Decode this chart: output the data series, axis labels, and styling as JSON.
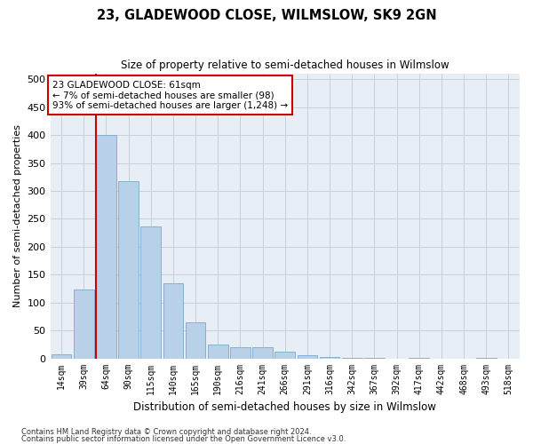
{
  "title": "23, GLADEWOOD CLOSE, WILMSLOW, SK9 2GN",
  "subtitle": "Size of property relative to semi-detached houses in Wilmslow",
  "xlabel": "Distribution of semi-detached houses by size in Wilmslow",
  "ylabel": "Number of semi-detached properties",
  "footnote1": "Contains HM Land Registry data © Crown copyright and database right 2024.",
  "footnote2": "Contains public sector information licensed under the Open Government Licence v3.0.",
  "annotation_line1": "23 GLADEWOOD CLOSE: 61sqm",
  "annotation_line2": "← 7% of semi-detached houses are smaller (98)",
  "annotation_line3": "93% of semi-detached houses are larger (1,248) →",
  "bar_color": "#b8d0e8",
  "bar_edge_color": "#7aa8cc",
  "highlight_color": "#cc0000",
  "categories": [
    "14sqm",
    "39sqm",
    "64sqm",
    "90sqm",
    "115sqm",
    "140sqm",
    "165sqm",
    "190sqm",
    "216sqm",
    "241sqm",
    "266sqm",
    "291sqm",
    "316sqm",
    "342sqm",
    "367sqm",
    "392sqm",
    "417sqm",
    "442sqm",
    "468sqm",
    "493sqm",
    "518sqm"
  ],
  "values": [
    7,
    123,
    400,
    318,
    237,
    135,
    65,
    25,
    20,
    20,
    12,
    6,
    3,
    1,
    1,
    0,
    1,
    0,
    0,
    1,
    0
  ],
  "ylim": [
    0,
    510
  ],
  "yticks": [
    0,
    50,
    100,
    150,
    200,
    250,
    300,
    350,
    400,
    450,
    500
  ],
  "red_line_bar_index": 2,
  "background_color": "#ffffff",
  "plot_bg_color": "#e8eef5",
  "grid_color": "#c8d0dc"
}
